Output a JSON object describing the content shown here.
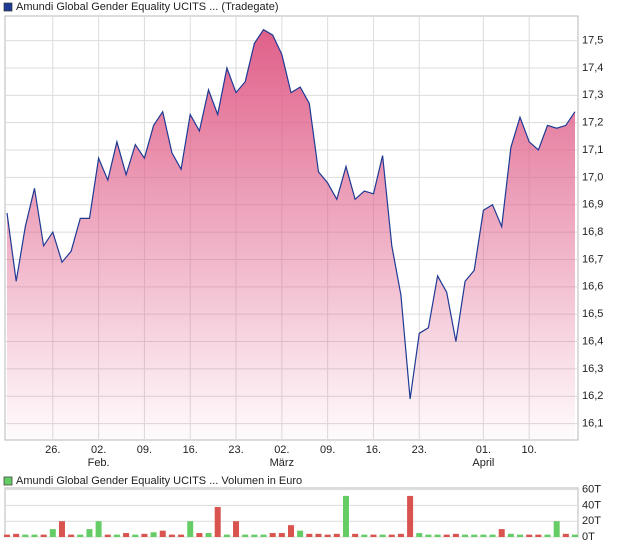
{
  "chart_data": [
    {
      "type": "area",
      "title": "Amundi Global Gender Equality UCITS ... (Tradegate)",
      "color": "#1f3a93",
      "fill": "#e0608a",
      "values": [
        16.87,
        16.62,
        16.82,
        16.96,
        16.75,
        16.8,
        16.69,
        16.73,
        16.85,
        16.85,
        17.07,
        16.99,
        17.13,
        17.01,
        17.12,
        17.07,
        17.19,
        17.24,
        17.09,
        17.03,
        17.23,
        17.17,
        17.32,
        17.23,
        17.4,
        17.31,
        17.35,
        17.49,
        17.54,
        17.52,
        17.45,
        17.31,
        17.33,
        17.27,
        17.02,
        16.98,
        16.92,
        17.04,
        16.92,
        16.95,
        16.94,
        17.08,
        16.75,
        16.57,
        16.19,
        16.43,
        16.45,
        16.64,
        16.58,
        16.4,
        16.62,
        16.66,
        16.88,
        16.9,
        16.82,
        17.11,
        17.22,
        17.13,
        17.1,
        17.19,
        17.18,
        17.19,
        17.24
      ],
      "xlim": [
        0,
        62
      ],
      "xticks": [
        {
          "value": 5,
          "label": "26."
        },
        {
          "value": 10,
          "label": "02."
        },
        {
          "value": 15,
          "label": "09."
        },
        {
          "value": 20,
          "label": "16."
        },
        {
          "value": 25,
          "label": "23."
        },
        {
          "value": 30,
          "label": "02."
        },
        {
          "value": 35,
          "label": "09."
        },
        {
          "value": 40,
          "label": "16."
        },
        {
          "value": 45,
          "label": "23."
        },
        {
          "value": 52,
          "label": "01."
        },
        {
          "value": 57,
          "label": "10."
        }
      ],
      "month_ticks": [
        {
          "value": 10,
          "label": "Feb."
        },
        {
          "value": 30,
          "label": "März"
        },
        {
          "value": 52,
          "label": "April"
        }
      ],
      "ylim": [
        16.04,
        17.59
      ],
      "yticks": [
        {
          "value": 16.1,
          "label": "16,1"
        },
        {
          "value": 16.2,
          "label": "16,2"
        },
        {
          "value": 16.3,
          "label": "16,3"
        },
        {
          "value": 16.4,
          "label": "16,4"
        },
        {
          "value": 16.5,
          "label": "16,5"
        },
        {
          "value": 16.6,
          "label": "16,6"
        },
        {
          "value": 16.7,
          "label": "16,7"
        },
        {
          "value": 16.8,
          "label": "16,8"
        },
        {
          "value": 16.9,
          "label": "16,9"
        },
        {
          "value": 17.0,
          "label": "17,0"
        },
        {
          "value": 17.1,
          "label": "17,1"
        },
        {
          "value": 17.2,
          "label": "17,2"
        },
        {
          "value": 17.3,
          "label": "17,3"
        },
        {
          "value": 17.4,
          "label": "17,4"
        },
        {
          "value": 17.5,
          "label": "17,5"
        }
      ],
      "grid": true
    },
    {
      "type": "bar",
      "title": "Amundi Global Gender Equality UCITS ... Volumen in Euro",
      "color": "#66cc66",
      "values": [
        3,
        4,
        3,
        3,
        3,
        10,
        20,
        3,
        3,
        10,
        20,
        3,
        3,
        5,
        3,
        4,
        6,
        8,
        3,
        3,
        20,
        5,
        5,
        38,
        3,
        20,
        3,
        3,
        3,
        5,
        5,
        15,
        8,
        4,
        4,
        3,
        4,
        52,
        4,
        3,
        3,
        3,
        3,
        4,
        52,
        5,
        3,
        3,
        3,
        4,
        3,
        3,
        3,
        3,
        10,
        4,
        3,
        3,
        3,
        3,
        20,
        4,
        3
      ],
      "colors": [
        "#d9534f",
        "#d9534f",
        "#66cc66",
        "#66cc66",
        "#d9534f",
        "#66cc66",
        "#d9534f",
        "#d9534f",
        "#66cc66",
        "#66cc66",
        "#66cc66",
        "#d9534f",
        "#66cc66",
        "#d9534f",
        "#66cc66",
        "#d9534f",
        "#66cc66",
        "#d9534f",
        "#d9534f",
        "#d9534f",
        "#66cc66",
        "#d9534f",
        "#66cc66",
        "#d9534f",
        "#66cc66",
        "#d9534f",
        "#66cc66",
        "#66cc66",
        "#66cc66",
        "#d9534f",
        "#d9534f",
        "#d9534f",
        "#66cc66",
        "#d9534f",
        "#d9534f",
        "#d9534f",
        "#d9534f",
        "#66cc66",
        "#d9534f",
        "#66cc66",
        "#d9534f",
        "#66cc66",
        "#d9534f",
        "#d9534f",
        "#d9534f",
        "#66cc66",
        "#66cc66",
        "#66cc66",
        "#d9534f",
        "#d9534f",
        "#66cc66",
        "#66cc66",
        "#66cc66",
        "#66cc66",
        "#d9534f",
        "#66cc66",
        "#66cc66",
        "#d9534f",
        "#d9534f",
        "#66cc66",
        "#66cc66",
        "#d9534f",
        "#66cc66"
      ],
      "xlim": [
        0,
        62
      ],
      "ylim": [
        0,
        62
      ],
      "yticks": [
        {
          "value": 0,
          "label": "0T"
        },
        {
          "value": 20,
          "label": "20T"
        },
        {
          "value": 40,
          "label": "40T"
        },
        {
          "value": 60,
          "label": "60T"
        }
      ],
      "grid": true
    }
  ]
}
